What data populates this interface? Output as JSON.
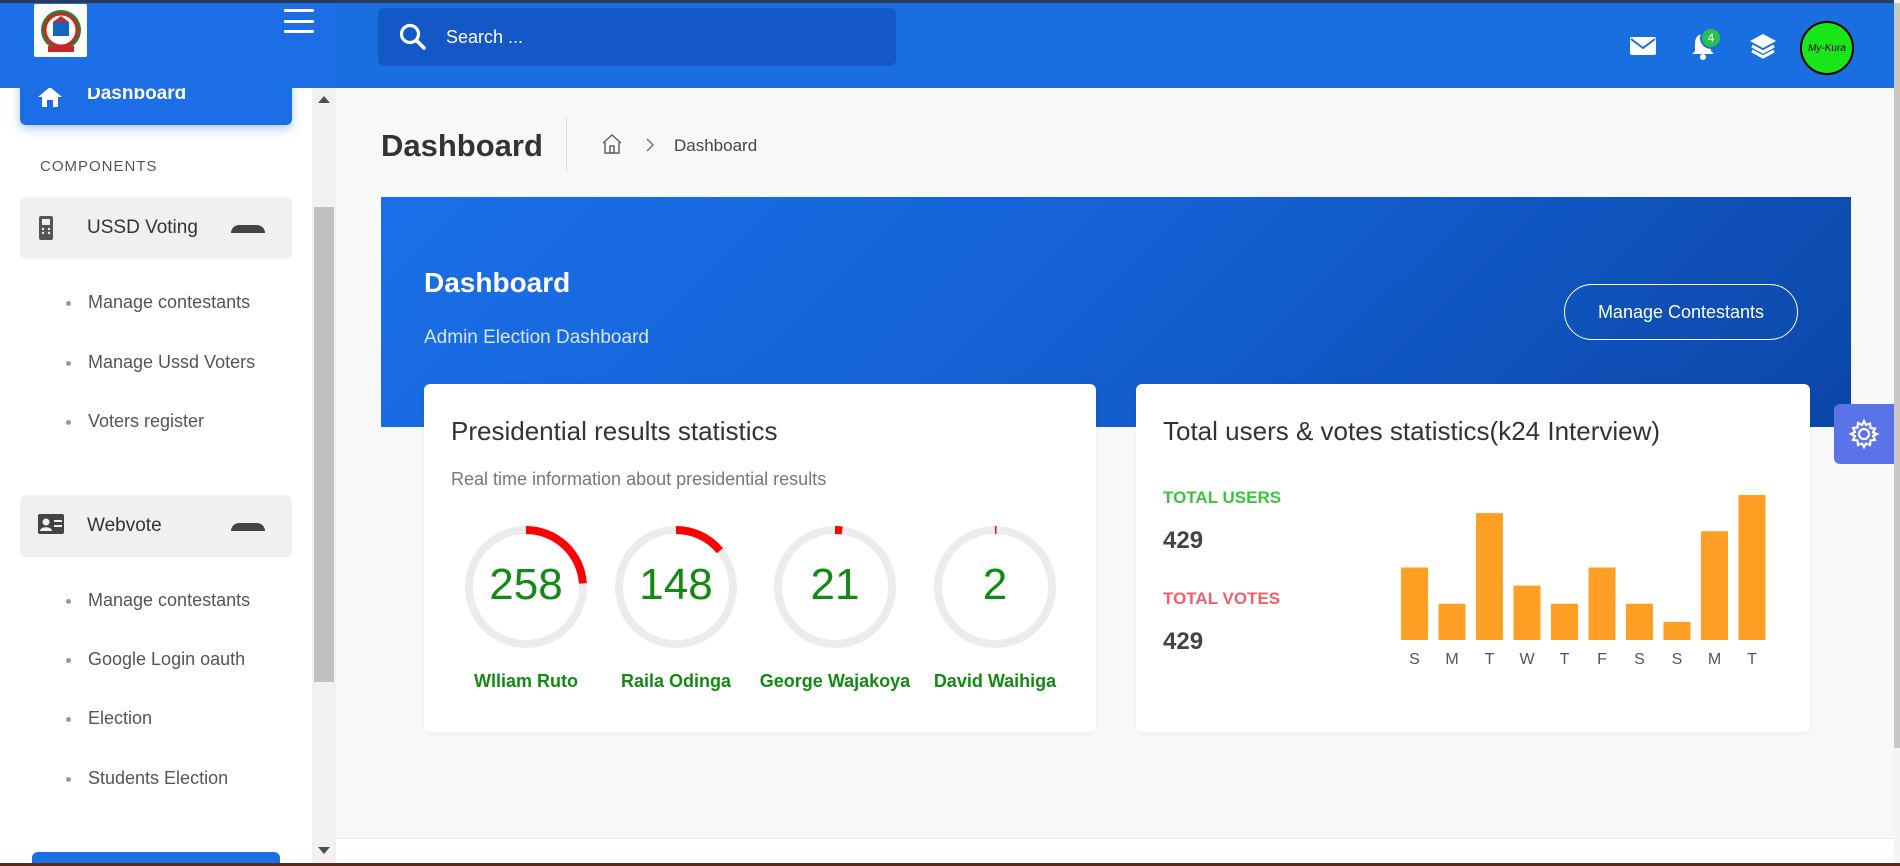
{
  "header": {
    "search_placeholder": "Search ...",
    "notification_count": "4",
    "avatar_text": "My-Kura"
  },
  "sidebar": {
    "active_item": "Dashboard",
    "section_title": "COMPONENTS",
    "groups": [
      {
        "label": "USSD Voting",
        "icon": "mobile-phone-icon",
        "items": [
          "Manage contestants",
          "Manage Ussd Voters",
          "Voters register"
        ]
      },
      {
        "label": "Webvote",
        "icon": "id-card-icon",
        "items": [
          "Manage contestants",
          "Google Login oauth",
          "Election",
          "Students Election"
        ]
      }
    ]
  },
  "page": {
    "title": "Dashboard",
    "breadcrumb_current": "Dashboard"
  },
  "hero": {
    "title": "Dashboard",
    "subtitle": "Admin Election Dashboard",
    "button_label": "Manage Contestants"
  },
  "presidential": {
    "title": "Presidential results statistics",
    "subtitle": "Real time information about presidential results",
    "candidates": [
      {
        "name": "Wlliam Ruto",
        "votes": "258",
        "fraction": 0.24
      },
      {
        "name": "Raila Odinga",
        "votes": "148",
        "fraction": 0.14
      },
      {
        "name": "George Wajakoya",
        "votes": "21",
        "fraction": 0.02
      },
      {
        "name": "David Waihiga",
        "votes": "2",
        "fraction": 0.004
      }
    ]
  },
  "totals": {
    "title": "Total users & votes statistics(k24 Interview)",
    "users_label": "TOTAL USERS",
    "users_value": "429",
    "votes_label": "TOTAL VOTES",
    "votes_value": "429"
  },
  "colors": {
    "primary": "#1a6fe0",
    "gauge_arc": "#ff0000",
    "gauge_track": "#ececec",
    "candidate_green": "#138a13",
    "bar": "#ff9f24",
    "users_label": "#3cc43c",
    "votes_label": "#f25f6a"
  },
  "chart_data": {
    "type": "bar",
    "categories": [
      "S",
      "M",
      "T",
      "W",
      "T",
      "F",
      "S",
      "S",
      "M",
      "T"
    ],
    "values": [
      8,
      4,
      14,
      6,
      4,
      8,
      4,
      2,
      12,
      16
    ],
    "ylim": [
      0,
      16
    ],
    "grid": false,
    "color": "#ff9f24"
  }
}
